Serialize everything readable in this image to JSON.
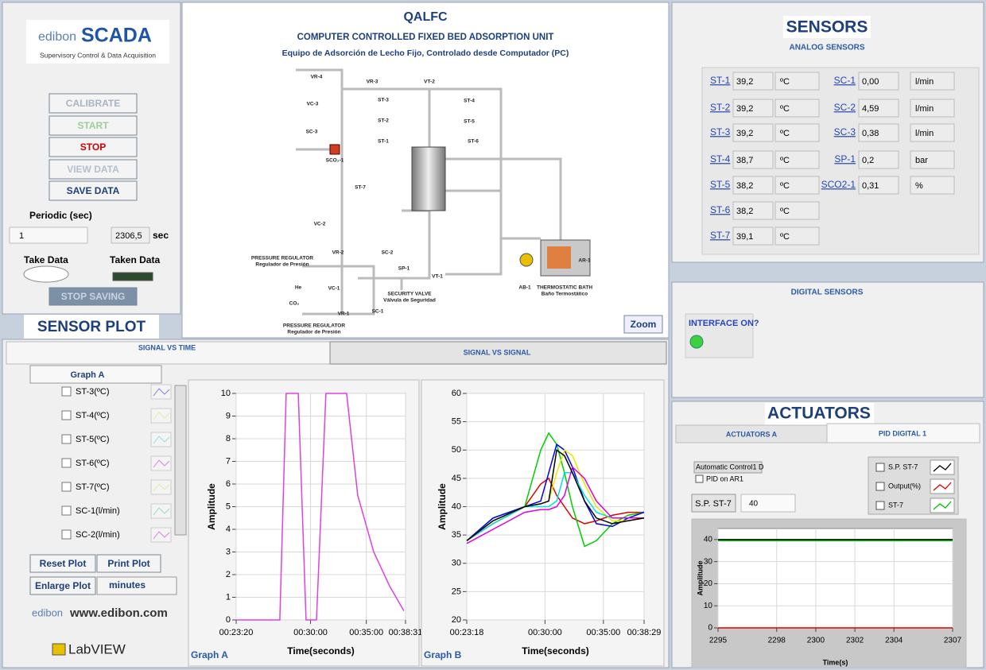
{
  "header": {
    "logo_brand": "edibon",
    "logo_title": "SCADA",
    "logo_subtitle": "Supervisory Control & Data Acquisition"
  },
  "controls": {
    "buttons": [
      "CALIBRATE",
      "START",
      "STOP",
      "VIEW DATA",
      "SAVE DATA"
    ],
    "periodic_label": "Periodic (sec)",
    "periodic_value": "1",
    "elapsed_value": "2306,5",
    "elapsed_unit": "sec",
    "take_data": "Take Data",
    "taken_data": "Taken Data",
    "stop_saving": "STOP SAVING"
  },
  "diagram": {
    "title": "QALFC",
    "subtitle": "COMPUTER CONTROLLED FIXED BED ADSORPTION UNIT",
    "subtitle_es": "Equipo de Adsorción de Lecho Fijo, Controlado desde Computador (PC)",
    "labels": [
      "VR-4",
      "VR-3",
      "VT-2",
      "VC-3",
      "ST-3",
      "ST-4",
      "ST-2",
      "ST-5",
      "ST-1",
      "ST-6",
      "SC-3",
      "SCO₂-1",
      "ST-7",
      "VC-2",
      "VR-2",
      "SC-2",
      "PRESSURE REGULATOR",
      "Regulador de Presión",
      "He",
      "SP-1",
      "VT-1",
      "VC-1",
      "AB-1",
      "AR-1",
      "THERMOSTATIC BATH",
      "Baño Termostático",
      "CO₂",
      "VR-1",
      "SC-1",
      "SECURITY VALVE",
      "Válvula de Seguridad",
      "PRESSURE REGULATOR",
      "Regulador de Presión"
    ],
    "zoom": "Zoom"
  },
  "sensors": {
    "title": "SENSORS",
    "analog_title": "ANALOG SENSORS",
    "analog": [
      {
        "label": "ST-1",
        "value": "39,2",
        "unit": "ºC"
      },
      {
        "label": "ST-2",
        "value": "39,2",
        "unit": "ºC"
      },
      {
        "label": "ST-3",
        "value": "39,2",
        "unit": "ºC"
      },
      {
        "label": "ST-4",
        "value": "38,7",
        "unit": "ºC"
      },
      {
        "label": "ST-5",
        "value": "38,2",
        "unit": "ºC"
      },
      {
        "label": "ST-6",
        "value": "38,2",
        "unit": "ºC"
      },
      {
        "label": "ST-7",
        "value": "39,1",
        "unit": "ºC"
      },
      {
        "label": "SC-1",
        "value": "0,00",
        "unit": "l/min"
      },
      {
        "label": "SC-2",
        "value": "4,59",
        "unit": "l/min"
      },
      {
        "label": "SC-3",
        "value": "0,38",
        "unit": "l/min"
      },
      {
        "label": "SP-1",
        "value": "0,2",
        "unit": "bar"
      },
      {
        "label": "SCO2-1",
        "value": "0,31",
        "unit": "%"
      }
    ],
    "digital_title": "DIGITAL SENSORS",
    "interface": "INTERFACE ON?"
  },
  "actuators": {
    "title": "ACTUATORS",
    "tabs": [
      "ACTUATORS A",
      "PID DIGITAL 1"
    ],
    "control_label": "Automatic Control1 D",
    "pid_checkbox": "PID on AR1",
    "setpoint_label": "S.P. ST-7",
    "setpoint_value": "40"
  },
  "sensor_plot": {
    "title": "SENSOR PLOT",
    "tabs": [
      "SIGNAL VS TIME",
      "SIGNAL VS SIGNAL"
    ],
    "graph_select": "Graph A",
    "channels": [
      "ST-3(ºC)",
      "ST-4(ºC)",
      "ST-5(ºC)",
      "ST-6(ºC)",
      "ST-7(ºC)",
      "SC-1(l/min)",
      "SC-2(l/min)"
    ],
    "buttons": [
      "Reset Plot",
      "Print Plot",
      "Enlarge Plot"
    ],
    "time_unit": "minutes",
    "website": "www.edibon.com",
    "labview": "LabVIEW"
  },
  "chart_data": [
    {
      "type": "line",
      "title": "Graph A",
      "xlabel": "Time(seconds)",
      "ylabel": "Amplitude",
      "x": [
        1400,
        1635,
        1669,
        1734,
        1776,
        1832,
        1883,
        1994,
        2054,
        2140,
        2225,
        2302
      ],
      "series": [
        {
          "color": "#e040e0",
          "values": [
            0,
            0,
            10,
            10,
            0,
            0,
            10,
            10,
            5.5,
            3,
            1.5,
            0.4
          ]
        }
      ],
      "xlim": [
        1400,
        2311
      ],
      "ylim": [
        0,
        10
      ],
      "xticks": [
        {
          "value": 1400,
          "label": "00:23:20"
        },
        {
          "value": 1800,
          "label": "00:30:00"
        },
        {
          "value": 2100,
          "label": "00:35:00"
        },
        {
          "value": 2311,
          "label": "00:38:31"
        }
      ],
      "yticks": [
        0,
        1,
        2,
        3,
        4,
        5,
        6,
        7,
        8,
        9,
        10
      ],
      "grid": true
    },
    {
      "type": "line",
      "title": "Graph B",
      "xlabel": "Time(seconds)",
      "ylabel": "Amplitude",
      "x": [
        1398,
        1533,
        1696,
        1778,
        1819,
        1860,
        1900,
        1941,
        2003,
        2064,
        2146,
        2227,
        2309
      ],
      "series": [
        {
          "color": "#e00000",
          "values": [
            34,
            37,
            40,
            44,
            45,
            42,
            40,
            38,
            37,
            37.5,
            38.5,
            39,
            39
          ]
        },
        {
          "color": "#00d000",
          "values": [
            34,
            38,
            40,
            50,
            53,
            51,
            46,
            40,
            33,
            34,
            37,
            38.5,
            39
          ]
        },
        {
          "color": "#0000ee",
          "values": [
            34,
            38,
            40,
            41,
            46,
            51,
            50,
            47,
            41,
            37,
            36.5,
            38,
            39
          ]
        },
        {
          "color": "#e8e800",
          "values": [
            34,
            37.5,
            40,
            40.5,
            41,
            46,
            50,
            49,
            44,
            40,
            37.5,
            37.5,
            38
          ]
        },
        {
          "color": "#00e0e0",
          "values": [
            34,
            37,
            40,
            40,
            40,
            41,
            46,
            46,
            42,
            39,
            38,
            38,
            38
          ]
        },
        {
          "color": "#e000e0",
          "values": [
            33.5,
            36,
            39,
            39.5,
            39.5,
            40,
            42,
            47,
            45,
            41,
            38,
            38,
            38
          ]
        },
        {
          "color": "#000000",
          "values": [
            34,
            37.5,
            40,
            40.5,
            41,
            50,
            49,
            46,
            41,
            38,
            37,
            37.5,
            38
          ]
        }
      ],
      "xlim": [
        1398,
        2309
      ],
      "ylim": [
        20,
        60
      ],
      "xticks": [
        {
          "value": 1398,
          "label": "00:23:18"
        },
        {
          "value": 1800,
          "label": "00:30:00"
        },
        {
          "value": 2100,
          "label": "00:35:00"
        },
        {
          "value": 2309,
          "label": "00:38:29"
        }
      ],
      "yticks": [
        20,
        25,
        30,
        35,
        40,
        45,
        50,
        55,
        60
      ],
      "grid": true
    },
    {
      "type": "line",
      "xlabel": "Time(s)",
      "ylabel": "Amplitude",
      "x": [
        2295,
        2307
      ],
      "series": [
        {
          "name": "S.P. ST-7",
          "color": "#000000",
          "values": [
            40,
            40
          ]
        },
        {
          "name": "Output(%)",
          "color": "#e00000",
          "values": [
            0,
            0
          ]
        },
        {
          "name": "ST-7",
          "color": "#00c000",
          "values": [
            39.5,
            39.5
          ]
        }
      ],
      "xlim": [
        2295,
        2307
      ],
      "ylim": [
        0,
        45
      ],
      "xticks": [
        2295,
        2298,
        2300,
        2302,
        2304,
        2307
      ],
      "yticks": [
        0,
        10,
        20,
        30,
        40
      ],
      "grid": true
    }
  ]
}
